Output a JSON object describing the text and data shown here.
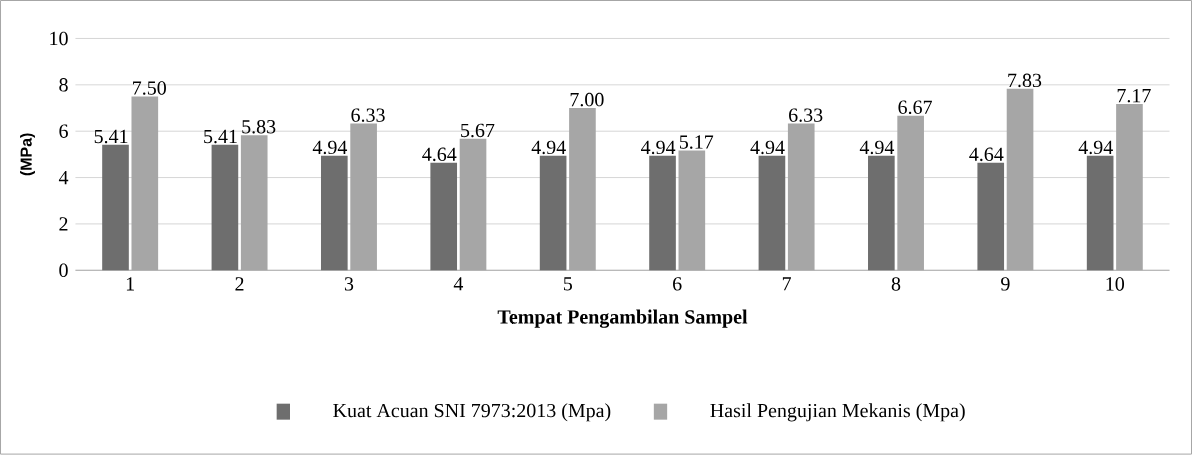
{
  "chart_data": {
    "type": "bar",
    "xlabel": "Tempat Pengambilan Sampel",
    "ylabel": "(MPa)",
    "categories": [
      "1",
      "2",
      "3",
      "4",
      "5",
      "6",
      "7",
      "8",
      "9",
      "10"
    ],
    "series": [
      {
        "name": "Kuat Acuan SNI 7973:2013 (Mpa)",
        "color": "#6e6e6e",
        "values": [
          5.41,
          5.41,
          4.94,
          4.64,
          4.94,
          4.94,
          4.94,
          4.94,
          4.64,
          4.94
        ],
        "value_labels": [
          "5.41",
          "5.41",
          "4.94",
          "4.64",
          "4.94",
          "4.94",
          "4.94",
          "4.94",
          "4.64",
          "4.94"
        ]
      },
      {
        "name": "Hasil Pengujian Mekanis (Mpa)",
        "color": "#a6a6a6",
        "values": [
          7.5,
          5.83,
          6.33,
          5.67,
          7.0,
          5.17,
          6.33,
          6.67,
          7.83,
          7.17
        ],
        "value_labels": [
          "7.50",
          "5.83",
          "6.33",
          "5.67",
          "7.00",
          "5.17",
          "6.33",
          "6.67",
          "7.83",
          "7.17"
        ]
      }
    ],
    "ylim": [
      0,
      10
    ],
    "yticks": [
      0,
      2,
      4,
      6,
      8,
      10
    ],
    "grid": "y",
    "legend": "bottom"
  }
}
